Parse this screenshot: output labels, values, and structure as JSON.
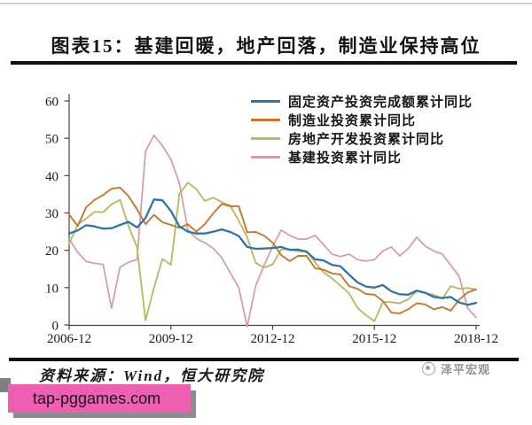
{
  "page": {
    "title": "图表15：基建回暖，地产回落，制造业保持高位",
    "source_label": "资料来源：Wind，恒大研究院",
    "watermark": "泽平宏观",
    "banner_text": "tap-pggames.com"
  },
  "colors": {
    "fixed_asset_blue": "#2e74a8",
    "manufacturing_orange": "#c9762c",
    "real_estate_olive": "#b4bd62",
    "infrastructure_pink": "#d49aa5",
    "banner_bg": "#ee5fb2",
    "rule_black": "#101010",
    "watermark_grey": "#8f949b",
    "axis_grey": "#444444"
  },
  "chart_data": {
    "type": "line",
    "title": "",
    "xlabel": "",
    "ylabel": "",
    "ylim": [
      0,
      60
    ],
    "y_ticks": [
      0,
      10,
      20,
      30,
      40,
      50,
      60
    ],
    "x_tick_labels": [
      "2006-12",
      "2009-12",
      "2012-12",
      "2015-12",
      "2018-12"
    ],
    "grid": false,
    "legend_position": "top-center-inside",
    "x_step_months": 3,
    "x": [
      "2006-12",
      "2007-03",
      "2007-06",
      "2007-09",
      "2007-12",
      "2008-03",
      "2008-06",
      "2008-09",
      "2008-12",
      "2009-03",
      "2009-06",
      "2009-09",
      "2009-12",
      "2010-03",
      "2010-06",
      "2010-09",
      "2010-12",
      "2011-03",
      "2011-06",
      "2011-09",
      "2011-12",
      "2012-03",
      "2012-06",
      "2012-09",
      "2012-12",
      "2013-03",
      "2013-06",
      "2013-09",
      "2013-12",
      "2014-03",
      "2014-06",
      "2014-09",
      "2014-12",
      "2015-03",
      "2015-06",
      "2015-09",
      "2015-12",
      "2016-03",
      "2016-06",
      "2016-09",
      "2016-12",
      "2017-03",
      "2017-06",
      "2017-09",
      "2017-12",
      "2018-03",
      "2018-06",
      "2018-09",
      "2018-12"
    ],
    "series": [
      {
        "name": "固定资产投资完成额累计同比",
        "color": "#2e74a8",
        "stroke_width": 2.3,
        "values": [
          24.5,
          25.3,
          26.7,
          26.4,
          25.8,
          25.9,
          26.8,
          27.6,
          26.1,
          28.6,
          33.6,
          33.4,
          30.5,
          26.4,
          25.0,
          24.5,
          24.5,
          25.0,
          25.6,
          24.9,
          23.8,
          20.9,
          20.4,
          20.5,
          20.6,
          20.9,
          20.1,
          20.2,
          19.6,
          17.6,
          17.3,
          16.1,
          15.7,
          13.5,
          11.4,
          10.3,
          10.0,
          10.7,
          9.0,
          8.2,
          8.1,
          9.2,
          8.6,
          7.5,
          7.2,
          7.5,
          6.0,
          5.4,
          5.9
        ]
      },
      {
        "name": "制造业投资累计同比",
        "color": "#c9762c",
        "stroke_width": 1.9,
        "values": [
          29.6,
          26.5,
          31.5,
          33.5,
          34.8,
          36.5,
          36.8,
          34.5,
          31.0,
          27.0,
          29.5,
          27.5,
          26.8,
          26.0,
          27.0,
          25.0,
          27.0,
          29.9,
          32.4,
          31.8,
          31.8,
          24.8,
          24.9,
          23.9,
          22.0,
          18.7,
          17.1,
          18.5,
          18.5,
          15.2,
          14.8,
          13.8,
          13.5,
          10.4,
          9.7,
          8.3,
          8.1,
          6.4,
          3.3,
          3.1,
          4.2,
          5.8,
          5.5,
          4.2,
          4.8,
          3.8,
          6.8,
          8.7,
          9.5
        ]
      },
      {
        "name": "房地产开发投资累计同比",
        "color": "#b4bd62",
        "stroke_width": 1.9,
        "values": [
          21.8,
          26.9,
          28.5,
          30.3,
          30.2,
          32.3,
          33.5,
          26.5,
          20.9,
          1.2,
          9.9,
          17.7,
          16.1,
          35.1,
          38.1,
          36.4,
          33.2,
          34.1,
          32.9,
          32.0,
          27.9,
          23.5,
          16.6,
          15.4,
          16.2,
          20.2,
          20.3,
          19.7,
          19.8,
          16.8,
          14.1,
          12.5,
          10.5,
          8.5,
          4.6,
          2.6,
          1.0,
          6.2,
          6.1,
          5.8,
          6.9,
          9.1,
          8.5,
          8.1,
          7.0,
          10.4,
          9.7,
          9.9,
          9.5
        ]
      },
      {
        "name": "基建投资累计同比",
        "color": "#d49aa5",
        "stroke_width": 1.7,
        "values": [
          23.0,
          19.5,
          17.0,
          16.5,
          16.2,
          4.5,
          15.5,
          16.8,
          17.5,
          46.5,
          50.8,
          48.0,
          44.3,
          38.0,
          25.5,
          23.2,
          22.0,
          20.5,
          18.0,
          14.0,
          10.0,
          -0.5,
          10.5,
          16.0,
          21.0,
          25.4,
          24.0,
          23.0,
          23.0,
          24.0,
          21.5,
          19.0,
          18.3,
          19.0,
          17.5,
          17.1,
          17.5,
          19.8,
          20.9,
          18.5,
          20.5,
          23.5,
          21.1,
          19.8,
          19.0,
          16.0,
          13.0,
          4.5,
          2.0
        ]
      }
    ]
  }
}
